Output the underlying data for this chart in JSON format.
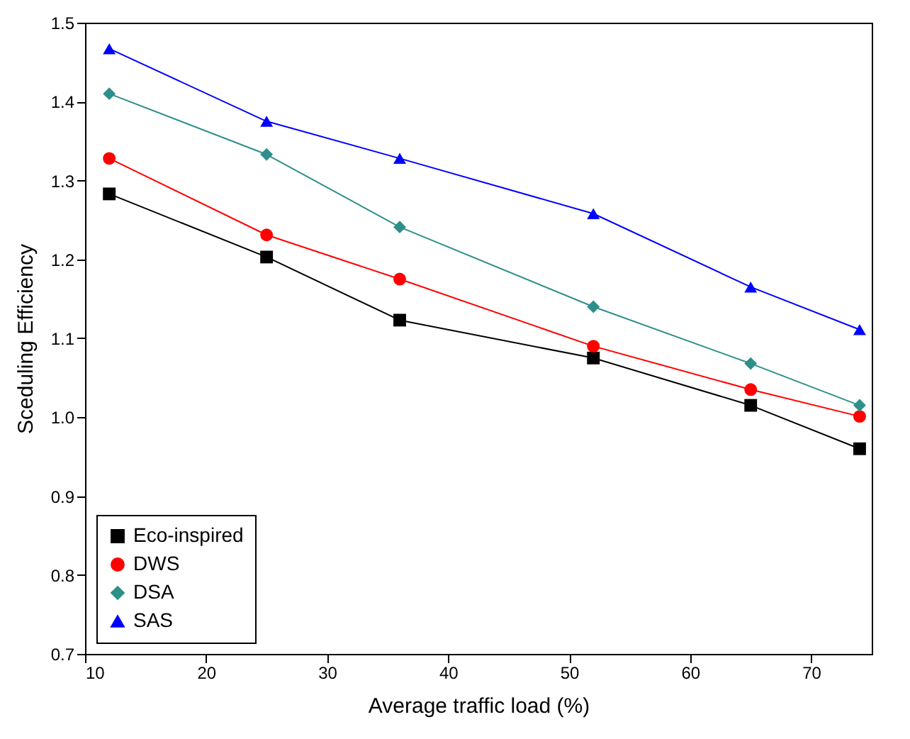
{
  "chart_data": {
    "type": "line",
    "xlabel": "Average traffic load (%)",
    "ylabel": "Sceduling Efficiency",
    "x": [
      12,
      25,
      36,
      52,
      65,
      74
    ],
    "xlim": [
      10,
      75
    ],
    "xticks": [
      10,
      20,
      30,
      40,
      50,
      60,
      70
    ],
    "ylim": [
      0.7,
      1.5
    ],
    "yticks": [
      0.7,
      0.8,
      0.9,
      {
        "value": 1,
        "label": "1.0"
      },
      1.1,
      1.2,
      1.3,
      1.4,
      1.5
    ],
    "grid": false,
    "legend": "bottom left",
    "series": [
      {
        "name": "Eco-inspired",
        "color": "#000000",
        "marker": "square",
        "values": [
          1.283,
          1.203,
          1.123,
          1.075,
          1.015,
          0.96
        ]
      },
      {
        "name": "DWS",
        "color": "#ff0000",
        "marker": "circle",
        "values": [
          1.328,
          1.231,
          1.175,
          1.09,
          1.035,
          1.001
        ]
      },
      {
        "name": "DSA",
        "color": "#2e8f8a",
        "marker": "diamond",
        "values": [
          1.41,
          1.333,
          1.241,
          1.14,
          1.068,
          1.015
        ]
      },
      {
        "name": "SAS",
        "color": "#0000ff",
        "marker": "triangle",
        "values": [
          1.467,
          1.375,
          1.328,
          1.258,
          1.165,
          1.111
        ]
      }
    ]
  }
}
